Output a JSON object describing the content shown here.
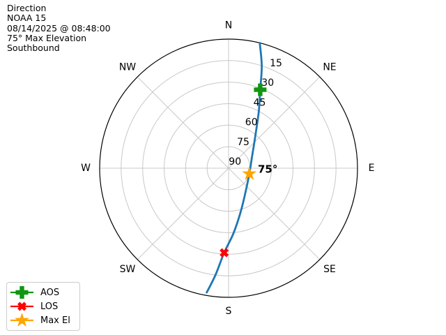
{
  "header": {
    "title": "Direction",
    "satellite": "NOAA 15",
    "datetime": "08/14/2025 @ 08:48:00",
    "max_elevation": "75° Max Elevation",
    "direction": "Southbound"
  },
  "legend": {
    "items": [
      {
        "label": "AOS",
        "symbol": "plus",
        "color": "#109610"
      },
      {
        "label": "LOS",
        "symbol": "x",
        "color": "#ff0000"
      },
      {
        "label": "Max El",
        "symbol": "star",
        "color": "#ffa500"
      }
    ]
  },
  "chart_data": {
    "type": "line",
    "projection": "polar",
    "title": "Direction",
    "angular_labels": [
      "N",
      "NE",
      "E",
      "SE",
      "S",
      "SW",
      "W",
      "NW"
    ],
    "radial_tick_labels": [
      "15",
      "30",
      "45",
      "60",
      "75",
      "90"
    ],
    "radial_ticks_deg": [
      15,
      30,
      45,
      60,
      75,
      90
    ],
    "radial_axis": "elevation degrees: 0 at outer horizon circle, 90 at center (zenith)",
    "grid": true,
    "max_el_annotation": "75°",
    "track": {
      "name": "satellite-pass-track",
      "color": "#1f77b4",
      "points_az_el": [
        [
          14,
          0
        ],
        [
          18,
          15
        ],
        [
          22,
          31
        ],
        [
          28,
          45
        ],
        [
          40,
          61
        ],
        [
          65,
          72
        ],
        [
          105,
          75
        ],
        [
          149,
          68
        ],
        [
          166,
          57
        ],
        [
          176,
          44
        ],
        [
          183,
          31
        ],
        [
          187,
          15
        ],
        [
          190,
          2
        ]
      ]
    },
    "markers": [
      {
        "name": "AOS",
        "symbol": "plus",
        "color": "#109610",
        "az": 22,
        "el": 31
      },
      {
        "name": "LOS",
        "symbol": "x",
        "color": "#ff0000",
        "az": 183,
        "el": 31
      },
      {
        "name": "Max El",
        "symbol": "star",
        "color": "#ffa500",
        "az": 105,
        "el": 75
      }
    ]
  }
}
